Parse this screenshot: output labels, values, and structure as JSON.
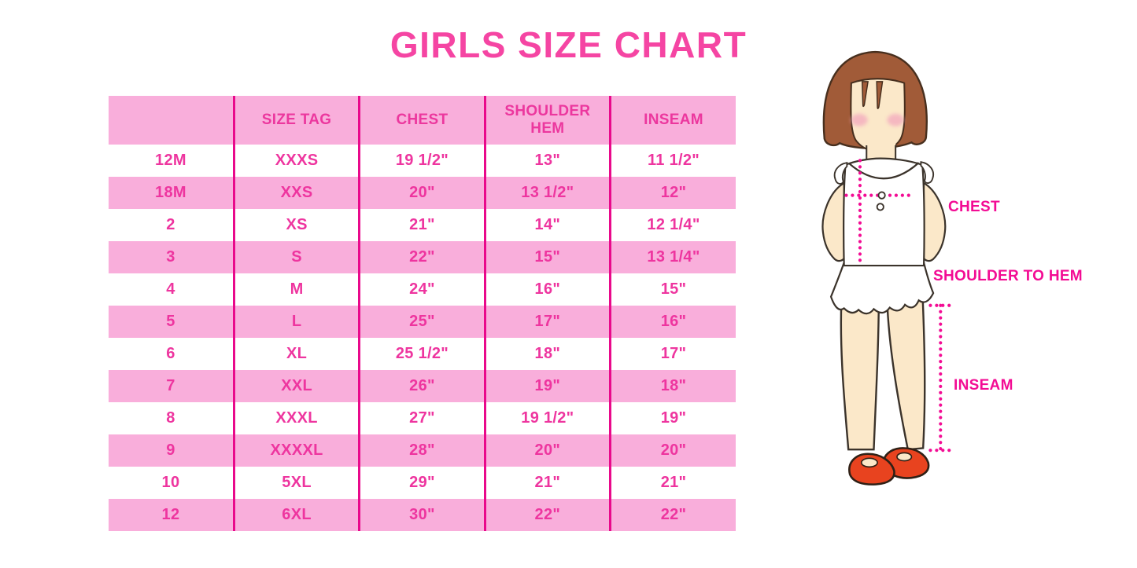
{
  "chart_data": {
    "type": "table",
    "title": "GIRLS SIZE CHART",
    "columns": [
      "",
      "SIZE TAG",
      "CHEST",
      "SHOULDER HEM",
      "INSEAM"
    ],
    "rows": [
      [
        "12M",
        "XXXS",
        "19 1/2\"",
        "13\"",
        "11 1/2\""
      ],
      [
        "18M",
        "XXS",
        "20\"",
        "13 1/2\"",
        "12\""
      ],
      [
        "2",
        "XS",
        "21\"",
        "14\"",
        "12 1/4\""
      ],
      [
        "3",
        "S",
        "22\"",
        "15\"",
        "13 1/4\""
      ],
      [
        "4",
        "M",
        "24\"",
        "16\"",
        "15\""
      ],
      [
        "5",
        "L",
        "25\"",
        "17\"",
        "16\""
      ],
      [
        "6",
        "XL",
        "25 1/2\"",
        "18\"",
        "17\""
      ],
      [
        "7",
        "XXL",
        "26\"",
        "19\"",
        "18\""
      ],
      [
        "8",
        "XXXL",
        "27\"",
        "19 1/2\"",
        "19\""
      ],
      [
        "9",
        "XXXXL",
        "28\"",
        "20\"",
        "20\""
      ],
      [
        "10",
        "5XL",
        "29\"",
        "21\"",
        "21\""
      ],
      [
        "12",
        "6XL",
        "30\"",
        "22\"",
        "22\""
      ]
    ],
    "layout_hints": {
      "header_background": "#F9AEDB",
      "alternating_row_pink": "#F9AEDB",
      "column_divider_color": "#E9098B",
      "horizontal_gridlines": false,
      "outer_border": false
    }
  },
  "figure": {
    "labels": {
      "chest": "CHEST",
      "shoulder_to_hem": "SHOULDER TO HEM",
      "inseam": "INSEAM"
    }
  },
  "colors": {
    "title_pink": "#F545A3",
    "table_text_pink": "#EE359F",
    "row_pink": "#F9AEDB",
    "divider_magenta": "#E9098B",
    "measure_line_pink": "#F30C94",
    "hair_brown": "#A15B38",
    "skin_tone": "#FBE8C9",
    "blush_pink": "#F3A8BE",
    "shoe_red": "#E8431F"
  }
}
